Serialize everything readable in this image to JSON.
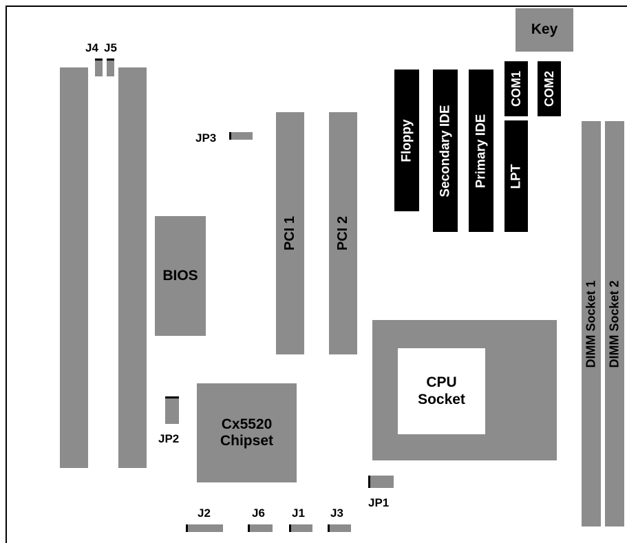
{
  "labels": {
    "key": "Key",
    "j4": "J4",
    "j5": "J5",
    "jp3": "JP3",
    "pci1": "PCI 1",
    "pci2": "PCI 2",
    "floppy": "Floppy",
    "secondary_ide": "Secondary IDE",
    "primary_ide": "Primary IDE",
    "com1": "COM1",
    "com2": "COM2",
    "lpt": "LPT",
    "bios": "BIOS",
    "dimm1": "DIMM Socket 1",
    "dimm2": "DIMM Socket 2",
    "cpu_line1": "CPU",
    "cpu_line2": "Socket",
    "chipset_line1": "Cx5520",
    "chipset_line2": "Chipset",
    "jp2": "JP2",
    "jp1": "JP1",
    "j2": "J2",
    "j6": "J6",
    "j1": "J1",
    "j3": "J3"
  },
  "colors": {
    "component": "#8c8c8c",
    "connector": "#000000",
    "background": "#ffffff"
  }
}
